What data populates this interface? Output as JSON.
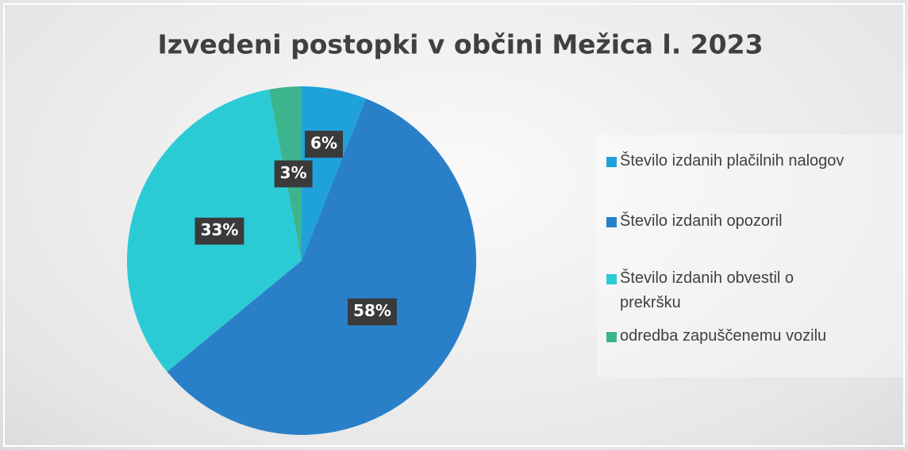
{
  "chart_data": {
    "type": "pie",
    "title": "Izvedeni postopki v občini Mežica l. 2023",
    "categories": [
      "Število izdanih plačilnih nalogov",
      "Število izdanih opozoril",
      "Število izdanih obvestil o prekršku",
      "odredba zapuščenemu vozilu"
    ],
    "values": [
      6,
      58,
      33,
      3
    ],
    "value_labels": [
      "6%",
      "58%",
      "33%",
      "3%"
    ],
    "colors": [
      "#1fa2dc",
      "#2a80c8",
      "#2bcbd6",
      "#3cb48e"
    ],
    "legend": "right"
  }
}
